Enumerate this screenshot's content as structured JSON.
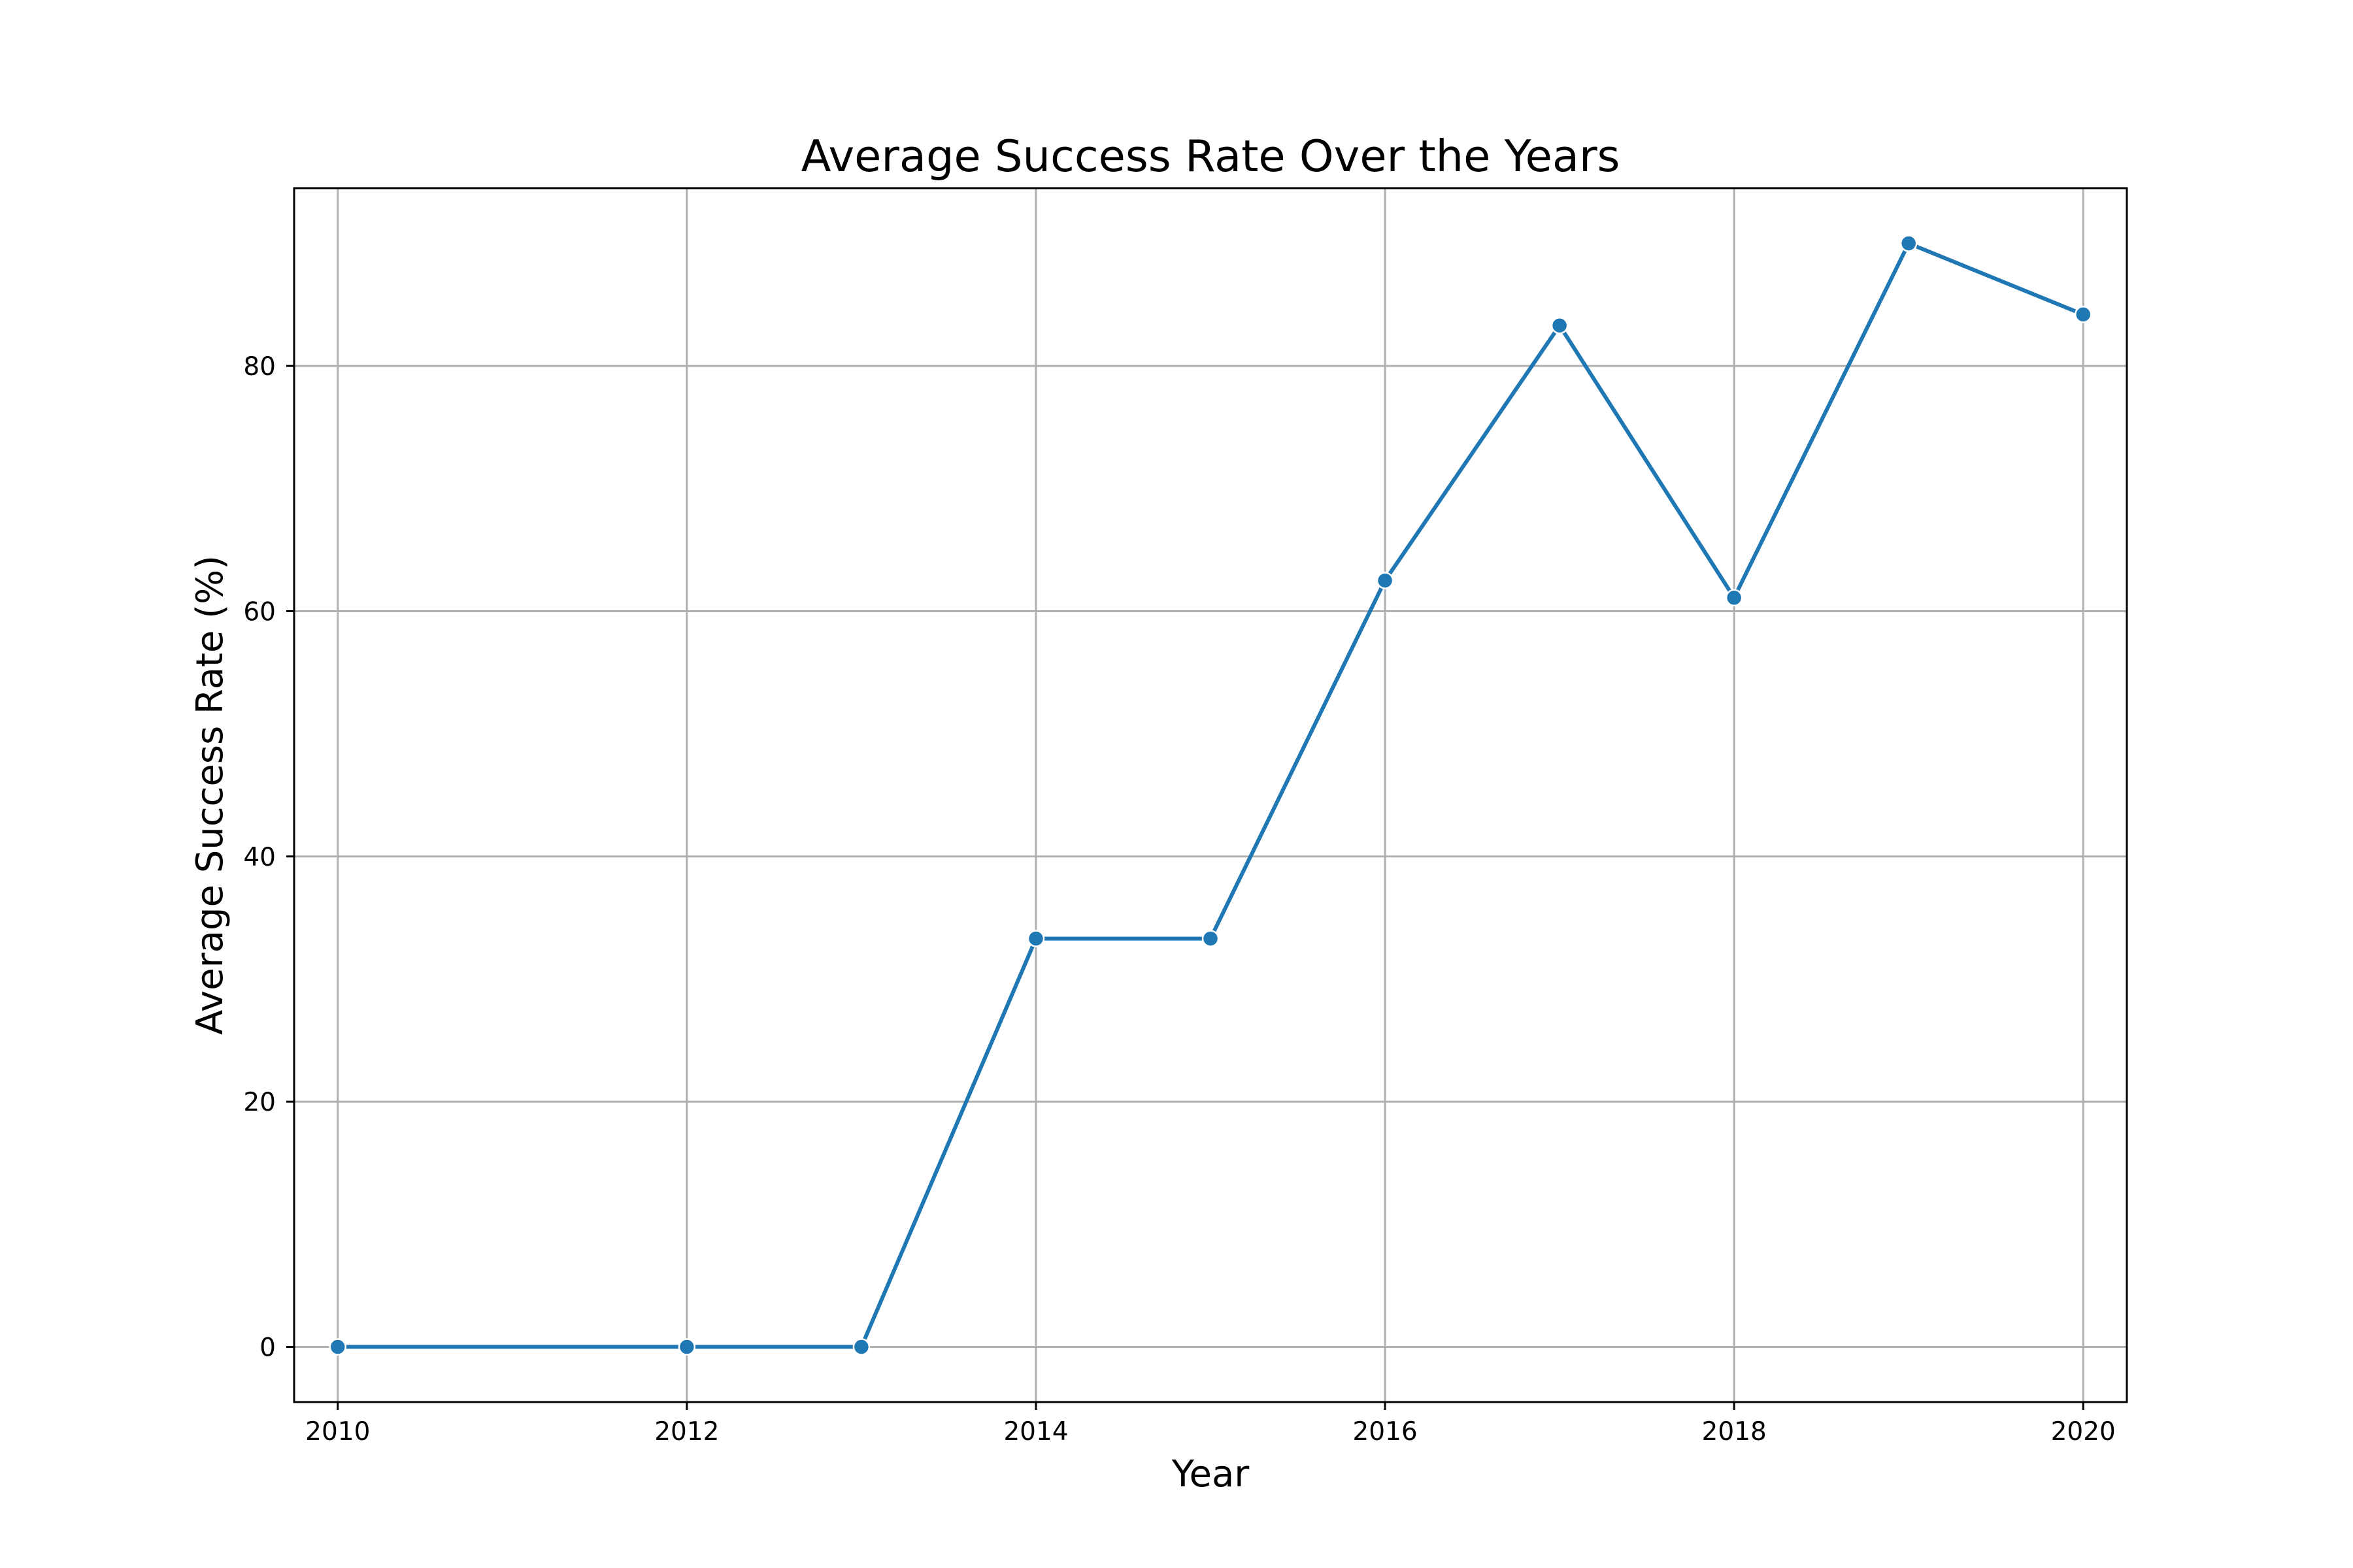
{
  "chart_data": {
    "type": "line",
    "title": "Average Success Rate Over the Years",
    "xlabel": "Year",
    "ylabel": "Average Success Rate (%)",
    "x": [
      2010,
      2012,
      2013,
      2014,
      2015,
      2016,
      2017,
      2018,
      2019,
      2020
    ],
    "series": [
      {
        "values": [
          0,
          0,
          0,
          33.3,
          33.3,
          62.5,
          83.3,
          61.1,
          90.0,
          84.2
        ],
        "color": "#1f77b4",
        "marker": "circle"
      }
    ],
    "xlim": [
      2009.75,
      2020.25
    ],
    "ylim": [
      -4.5,
      94.5
    ],
    "xticks": [
      2010,
      2012,
      2014,
      2016,
      2018,
      2020
    ],
    "yticks": [
      0,
      20,
      40,
      60,
      80
    ],
    "grid": true,
    "colors": {
      "line": "#1f77b4",
      "grid": "#b0b0b0",
      "axes": "#000000"
    }
  }
}
